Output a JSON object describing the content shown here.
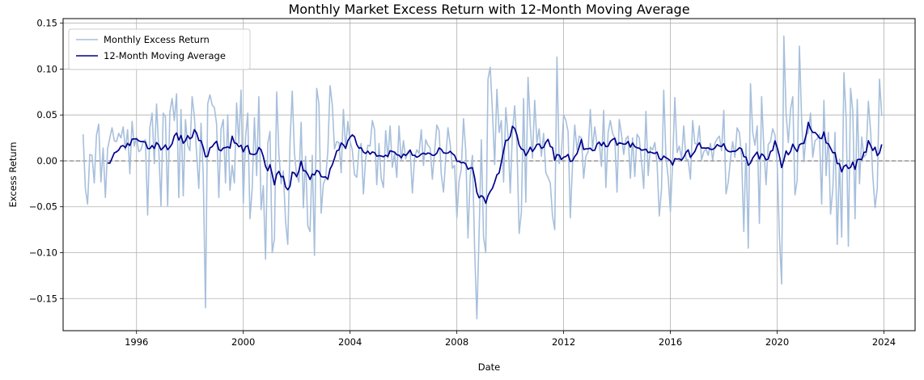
{
  "chart_data": {
    "type": "line",
    "title": "Monthly Market Excess Return with 12-Month Moving Average",
    "xlabel": "Date",
    "ylabel": "Excess Return",
    "x_range": [
      "1993-04-01",
      "2025-03-01"
    ],
    "ylim": [
      -0.185,
      0.155
    ],
    "x_ticks": [
      "1996",
      "2000",
      "2004",
      "2008",
      "2012",
      "2016",
      "2020",
      "2024"
    ],
    "y_ticks": [
      "−0.15",
      "−0.10",
      "−0.05",
      "0.00",
      "0.05",
      "0.10",
      "0.15"
    ],
    "y_tick_values": [
      -0.15,
      -0.1,
      -0.05,
      0.0,
      0.05,
      0.1,
      0.15
    ],
    "grid": true,
    "zero_line": 0.0,
    "legend_position": "top-left",
    "series": [
      {
        "name": "Monthly Excess Return",
        "color": "#a7bfdc",
        "start": "1994-01",
        "frequency": "monthly",
        "values": [
          0.029,
          -0.03,
          -0.047,
          0.007,
          0.006,
          -0.024,
          0.028,
          0.04,
          -0.023,
          0.014,
          -0.04,
          0.013,
          0.025,
          0.036,
          0.022,
          0.021,
          0.03,
          0.025,
          0.037,
          0.012,
          0.034,
          -0.014,
          0.043,
          0.016,
          0.026,
          0.01,
          0.012,
          0.021,
          0.023,
          -0.059,
          0.036,
          0.052,
          -0.003,
          0.062,
          0.013,
          -0.049,
          0.052,
          0.048,
          -0.049,
          0.053,
          0.068,
          0.044,
          0.073,
          -0.04,
          0.056,
          -0.038,
          0.045,
          0.017,
          0.011,
          0.07,
          0.049,
          0.009,
          -0.03,
          0.041,
          -0.016,
          -0.16,
          0.062,
          0.072,
          0.061,
          0.058,
          0.04,
          -0.04,
          0.035,
          0.045,
          -0.024,
          0.05,
          -0.032,
          -0.005,
          -0.024,
          0.063,
          0.019,
          0.077,
          -0.046,
          0.025,
          0.052,
          -0.063,
          -0.03,
          0.047,
          -0.016,
          0.07,
          -0.053,
          -0.027,
          -0.107,
          0.019,
          0.032,
          -0.1,
          -0.085,
          0.075,
          0.008,
          -0.025,
          -0.011,
          -0.066,
          -0.091,
          0.02,
          0.076,
          0.008,
          -0.016,
          -0.023,
          0.042,
          -0.051,
          0.005,
          -0.071,
          -0.077,
          0.006,
          -0.103,
          0.079,
          0.062,
          -0.057,
          -0.025,
          -0.019,
          0.01,
          0.082,
          0.061,
          0.013,
          0.021,
          0.02,
          -0.013,
          0.056,
          0.014,
          0.043,
          0.021,
          0.012,
          -0.015,
          -0.018,
          0.012,
          0.019,
          -0.036,
          0.002,
          0.017,
          0.016,
          0.044,
          0.034,
          -0.026,
          0.019,
          -0.019,
          -0.029,
          0.033,
          0.003,
          0.038,
          -0.007,
          0.008,
          -0.018,
          0.038,
          0.0,
          0.022,
          0.002,
          0.01,
          0.012,
          -0.035,
          0.003,
          0.012,
          0.008,
          0.034,
          -0.005,
          0.023,
          0.017,
          0.014,
          -0.02,
          0.011,
          0.039,
          0.033,
          -0.015,
          -0.034,
          0.003,
          0.036,
          0.018,
          -0.008,
          -0.005,
          -0.062,
          -0.022,
          -0.009,
          0.046,
          0.011,
          -0.084,
          -0.017,
          0.006,
          -0.096,
          -0.172,
          -0.079,
          0.023,
          -0.083,
          -0.1,
          0.089,
          0.102,
          0.053,
          -0.004,
          0.078,
          0.031,
          0.044,
          -0.023,
          0.058,
          0.027,
          -0.035,
          0.032,
          0.06,
          0.018,
          -0.079,
          -0.056,
          0.068,
          -0.045,
          0.091,
          0.039,
          0.003,
          0.066,
          0.02,
          0.035,
          0.005,
          0.03,
          -0.013,
          -0.018,
          -0.024,
          -0.06,
          -0.075,
          0.113,
          -0.003,
          0.008,
          0.05,
          0.044,
          0.032,
          -0.062,
          -0.004,
          0.039,
          0.012,
          0.027,
          0.025,
          -0.019,
          0.005,
          0.01,
          0.056,
          0.013,
          0.037,
          0.018,
          0.021,
          -0.006,
          0.055,
          -0.029,
          0.031,
          0.044,
          0.03,
          0.025,
          -0.034,
          0.045,
          0.029,
          0.007,
          0.024,
          0.027,
          -0.019,
          0.025,
          -0.017,
          0.029,
          0.025,
          -0.001,
          -0.03,
          0.054,
          -0.016,
          0.015,
          0.012,
          0.02,
          -0.002,
          -0.06,
          -0.031,
          0.077,
          0.004,
          -0.018,
          -0.055,
          -0.002,
          0.069,
          0.009,
          0.016,
          0.002,
          0.038,
          0.002,
          0.001,
          -0.02,
          0.044,
          0.019,
          0.018,
          0.038,
          0.001,
          0.01,
          0.013,
          0.006,
          0.019,
          0.001,
          0.019,
          0.024,
          0.027,
          0.011,
          0.055,
          -0.036,
          -0.023,
          0.002,
          0.021,
          0.004,
          0.036,
          0.031,
          0.005,
          -0.077,
          0.019,
          -0.095,
          0.084,
          0.031,
          0.017,
          0.038,
          -0.068,
          0.07,
          0.014,
          -0.026,
          0.018,
          0.021,
          0.035,
          0.028,
          -0.002,
          -0.082,
          -0.134,
          0.136,
          0.052,
          0.02,
          0.056,
          0.07,
          -0.037,
          -0.021,
          0.125,
          0.044,
          -0.001,
          0.028,
          0.031,
          0.052,
          0.004,
          0.022,
          0.024,
          0.029,
          -0.047,
          0.066,
          -0.016,
          0.031,
          -0.058,
          -0.031,
          0.031,
          -0.091,
          0.002,
          -0.083,
          0.096,
          0.047,
          -0.093,
          0.079,
          0.054,
          -0.063,
          0.067,
          -0.025,
          0.026,
          0.004,
          0.007,
          0.065,
          0.032,
          -0.017,
          -0.051,
          -0.03,
          0.089,
          0.049
        ]
      },
      {
        "name": "12-Month Moving Average",
        "color": "#00008b",
        "window": 12
      }
    ]
  }
}
